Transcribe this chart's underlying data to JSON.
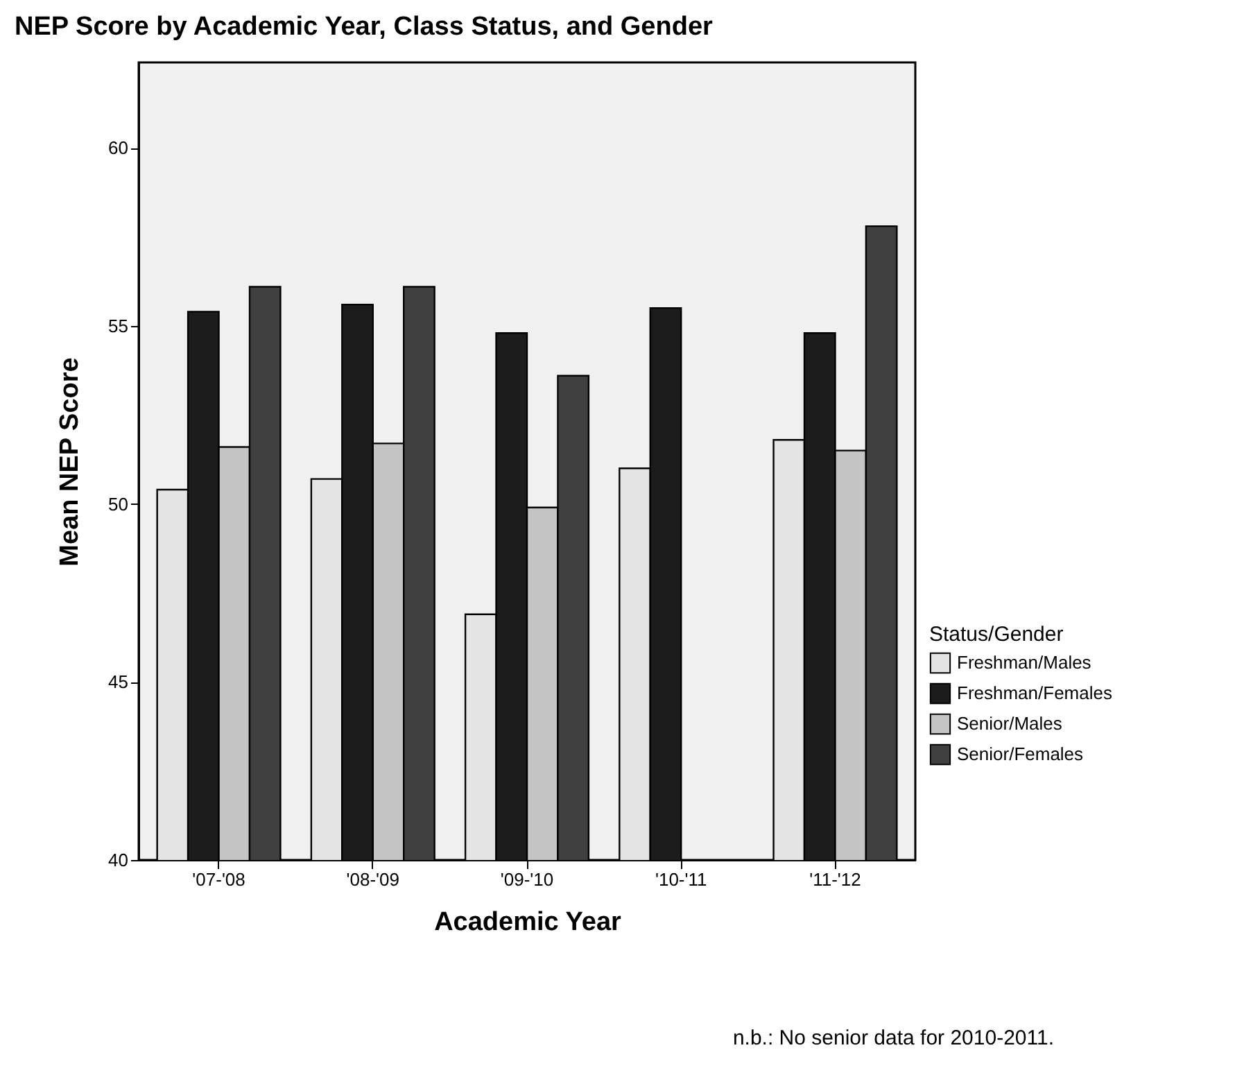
{
  "chart_data": {
    "type": "bar",
    "title": "NEP Score by Academic Year, Class Status, and Gender",
    "xlabel": "Academic Year",
    "ylabel": "Mean NEP Score",
    "legend_title": "Status/Gender",
    "categories": [
      "'07-'08",
      "'08-'09",
      "'09-'10",
      "'10-'11",
      "'11-'12"
    ],
    "series": [
      {
        "name": "Freshman/Males",
        "color": "#e4e4e4",
        "values": [
          50.4,
          50.7,
          46.9,
          51.0,
          51.8
        ]
      },
      {
        "name": "Freshman/Females",
        "color": "#1c1c1c",
        "values": [
          55.4,
          55.6,
          54.8,
          55.5,
          54.8
        ]
      },
      {
        "name": "Senior/Males",
        "color": "#c4c4c4",
        "values": [
          51.6,
          51.7,
          49.9,
          null,
          51.5
        ]
      },
      {
        "name": "Senior/Females",
        "color": "#404040",
        "values": [
          56.1,
          56.1,
          53.6,
          null,
          57.8
        ]
      }
    ],
    "ylim": [
      40,
      62.4
    ],
    "yticks": [
      40,
      45,
      50,
      55,
      60
    ],
    "grid": false,
    "legend": "right",
    "annotations": [
      "n.b.: No senior data for 2010-2011."
    ]
  }
}
